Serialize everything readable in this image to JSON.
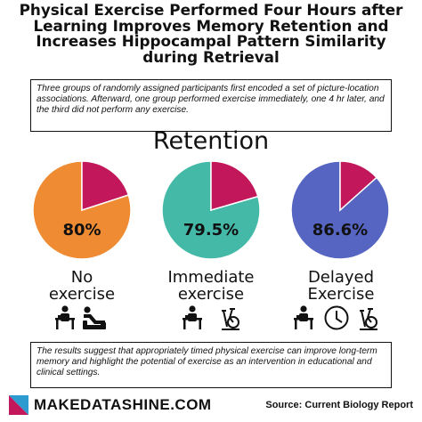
{
  "title": "Physical Exercise Performed Four Hours after Learning Improves Memory Retention and Increases Hippocampal Pattern Similarity during Retrieval",
  "intro": "Three groups of randomly assigned participants first encoded a set of picture-location associations. Afterward, one group performed exercise immediately, one 4 hr later, and the third did not perform any exercise.",
  "chart_data": {
    "type": "pie",
    "title": "Retention",
    "series": [
      {
        "name": "No exercise",
        "value": 80,
        "label": "80%",
        "color": "#EE8B33"
      },
      {
        "name": "Immediate exercise",
        "value": 79.5,
        "label": "79.5%",
        "color": "#45B9A8"
      },
      {
        "name": "Delayed Exercise",
        "value": 86.6,
        "label": "86.6%",
        "color": "#5765C2"
      }
    ],
    "remainder_color": "#C2185B"
  },
  "groups": [
    {
      "line1": "No",
      "line2": "exercise"
    },
    {
      "line1": "Immediate",
      "line2": "exercise"
    },
    {
      "line1": "Delayed",
      "line2": "Exercise"
    }
  ],
  "icons": [
    [
      "person-at-desk-icon",
      "person-relaxing-in-chair-icon"
    ],
    [
      "person-at-desk-icon",
      "exercise-bike-icon"
    ],
    [
      "person-at-desk-icon",
      "clock-icon",
      "exercise-bike-icon"
    ]
  ],
  "conclusion": "The results suggest that appropriately timed physical exercise can improve long-term memory and highlight the potential of exercise as an intervention in educational and clinical settings.",
  "footer": {
    "brand": "MAKEDATASHINE.COM",
    "source": "Source:  Current Biology Report"
  }
}
